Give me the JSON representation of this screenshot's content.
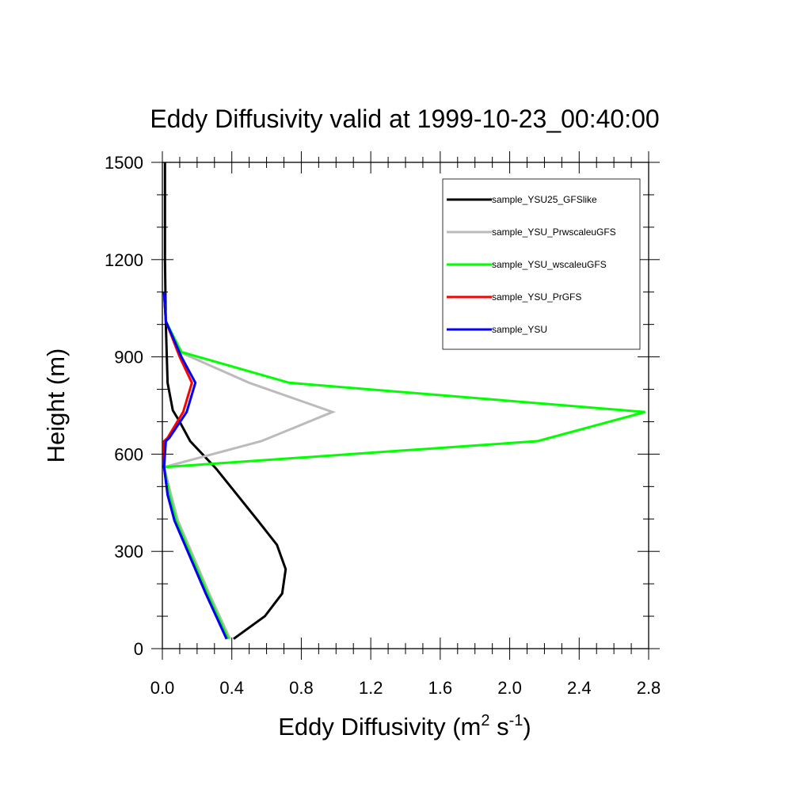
{
  "chart_data": {
    "type": "line",
    "title": "Eddy Diffusivity valid at 1999-10-23_00:40:00",
    "xlabel": {
      "base": "Eddy Diffusivity (m",
      "sup1": "2",
      "mid": " s",
      "sup2": "-1",
      "end": ")"
    },
    "ylabel": "Height (m)",
    "xlim": [
      0.0,
      2.8
    ],
    "ylim": [
      0,
      1500
    ],
    "xticks": [
      0.0,
      0.4,
      0.8,
      1.2,
      1.6,
      2.0,
      2.4,
      2.8
    ],
    "xtick_labels": [
      "0.0",
      "0.4",
      "0.8",
      "1.2",
      "1.6",
      "2.0",
      "2.4",
      "2.8"
    ],
    "yticks": [
      0,
      300,
      600,
      900,
      1200,
      1500
    ],
    "ytick_labels": [
      "0",
      "300",
      "600",
      "900",
      "1200",
      "1500"
    ],
    "grid": false,
    "legend_position": "top-right",
    "series": [
      {
        "name": "sample_YSU25_GFSlike",
        "color": "#000000",
        "points": [
          [
            0.41,
            30
          ],
          [
            0.59,
            100
          ],
          [
            0.69,
            170
          ],
          [
            0.71,
            245
          ],
          [
            0.66,
            320
          ],
          [
            0.55,
            395
          ],
          [
            0.43,
            475
          ],
          [
            0.31,
            555
          ],
          [
            0.16,
            640
          ],
          [
            0.1,
            700
          ],
          [
            0.06,
            735
          ],
          [
            0.03,
            820
          ],
          [
            0.02,
            1000
          ],
          [
            0.015,
            1200
          ],
          [
            0.015,
            1500
          ]
        ]
      },
      {
        "name": "sample_YSU_PrwscaleuGFS",
        "color": "#bbbbbb",
        "points": [
          [
            0.39,
            30
          ],
          [
            0.27,
            170
          ],
          [
            0.15,
            320
          ],
          [
            0.09,
            395
          ],
          [
            0.05,
            475
          ],
          [
            0.01,
            560
          ],
          [
            0.57,
            640
          ],
          [
            0.98,
            730
          ],
          [
            0.5,
            820
          ],
          [
            0.1,
            915
          ],
          [
            0.02,
            1010
          ],
          [
            0.01,
            1100
          ]
        ]
      },
      {
        "name": "sample_YSU_wscaleuGFS",
        "color": "#00ff00",
        "points": [
          [
            0.38,
            30
          ],
          [
            0.26,
            170
          ],
          [
            0.14,
            320
          ],
          [
            0.08,
            395
          ],
          [
            0.04,
            475
          ],
          [
            0.01,
            560
          ],
          [
            2.16,
            640
          ],
          [
            2.78,
            730
          ],
          [
            0.73,
            820
          ],
          [
            0.11,
            915
          ],
          [
            0.02,
            1010
          ],
          [
            0.01,
            1100
          ]
        ]
      },
      {
        "name": "sample_YSU_PrGFS",
        "color": "#ff0000",
        "points": [
          [
            0.37,
            30
          ],
          [
            0.25,
            170
          ],
          [
            0.13,
            320
          ],
          [
            0.07,
            395
          ],
          [
            0.03,
            475
          ],
          [
            0.01,
            560
          ],
          [
            0.01,
            640
          ],
          [
            0.03,
            650
          ],
          [
            0.12,
            730
          ],
          [
            0.17,
            820
          ],
          [
            0.1,
            900
          ],
          [
            0.02,
            1010
          ],
          [
            0.01,
            1100
          ]
        ]
      },
      {
        "name": "sample_YSU",
        "color": "#0000ff",
        "points": [
          [
            0.37,
            30
          ],
          [
            0.25,
            170
          ],
          [
            0.13,
            320
          ],
          [
            0.07,
            395
          ],
          [
            0.03,
            475
          ],
          [
            0.01,
            560
          ],
          [
            0.02,
            640
          ],
          [
            0.04,
            650
          ],
          [
            0.14,
            730
          ],
          [
            0.19,
            820
          ],
          [
            0.11,
            900
          ],
          [
            0.02,
            1010
          ],
          [
            0.01,
            1100
          ]
        ]
      }
    ]
  }
}
